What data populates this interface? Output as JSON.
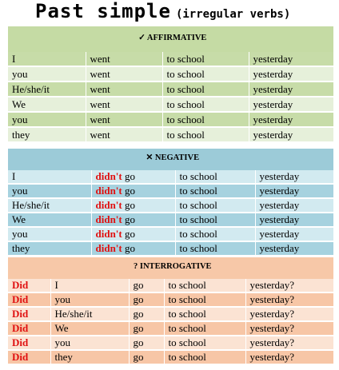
{
  "title": {
    "main": "Past simple",
    "sub": "(irregular verbs)"
  },
  "affirmative": {
    "header": "✓ AFFIRMATIVE",
    "rows": [
      [
        "I",
        "went",
        "to school",
        "yesterday"
      ],
      [
        "you",
        "went",
        "to school",
        "yesterday"
      ],
      [
        "He/she/it",
        "went",
        "to school",
        "yesterday"
      ],
      [
        "We",
        "went",
        "to school",
        "yesterday"
      ],
      [
        "you",
        "went",
        "to school",
        "yesterday"
      ],
      [
        "they",
        "went",
        "to school",
        "yesterday"
      ]
    ]
  },
  "negative": {
    "header": "✕ NEGATIVE",
    "aux": "didn't",
    "rows": [
      [
        "I",
        "go",
        "to school",
        "yesterday"
      ],
      [
        "you",
        "go",
        "to school",
        "yesterday"
      ],
      [
        "He/she/it",
        "go",
        "to school",
        "yesterday"
      ],
      [
        "We",
        "go",
        "to school",
        "yesterday"
      ],
      [
        "you",
        "go",
        "to school",
        "yesterday"
      ],
      [
        "they",
        "go",
        "to school",
        "yesterday"
      ]
    ]
  },
  "interrogative": {
    "header": "? INTERROGATIVE",
    "aux": "Did",
    "rows": [
      [
        "I",
        "go",
        "to school",
        "yesterday?"
      ],
      [
        "you",
        "go",
        "to school",
        "yesterday?"
      ],
      [
        "He/she/it",
        "go",
        "to school",
        "yesterday?"
      ],
      [
        "We",
        "go",
        "to school",
        "yesterday?"
      ],
      [
        "you",
        "go",
        "to school",
        "yesterday?"
      ],
      [
        "they",
        "go",
        "to school",
        "yesterday?"
      ]
    ]
  }
}
